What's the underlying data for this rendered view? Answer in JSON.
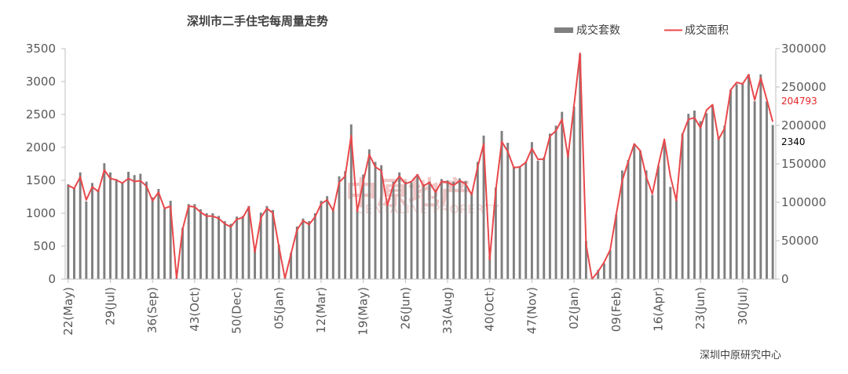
{
  "chart_data": {
    "type": "bar",
    "title": "深圳市二手住宅每周量走势",
    "source": "深圳中原研究中心",
    "legend_position": "top-right",
    "grid": false,
    "watermark": {
      "text_cn": "中原地产",
      "text_en": "CENTALINE PROPERTY"
    },
    "colors": {
      "bars": "#7f7f7f",
      "line": "#e8484b",
      "axis": "#bfbfbf",
      "text": "#595959"
    },
    "x_tick_labels": [
      "22(May)",
      "29(Jul)",
      "36(Sep)",
      "43(Oct)",
      "50(Dec)",
      "05(Jan)",
      "12(Mar)",
      "19(May)",
      "26(Jun)",
      "33(Aug)",
      "40(Oct)",
      "47(Nov)",
      "02(Jan)",
      "09(Feb)",
      "16(Apr)",
      "23(Jun)",
      "30(Jul)"
    ],
    "left_axis": {
      "min": 0,
      "max": 3500,
      "ticks": [
        0,
        500,
        1000,
        1500,
        2000,
        2500,
        3000,
        3500
      ]
    },
    "right_axis": {
      "min": 0,
      "max": 300000,
      "ticks": [
        0,
        50000,
        100000,
        150000,
        200000,
        250000,
        300000
      ]
    },
    "series": [
      {
        "name": "成交套数",
        "type": "bar",
        "axis": "left",
        "values": [
          1440,
          1380,
          1620,
          1180,
          1460,
          1360,
          1760,
          1620,
          1520,
          1460,
          1630,
          1580,
          1600,
          1480,
          1240,
          1370,
          1070,
          1190,
          20,
          780,
          1140,
          1140,
          1060,
          1000,
          1000,
          960,
          880,
          840,
          950,
          960,
          1110,
          480,
          1010,
          1110,
          1050,
          520,
          20,
          400,
          800,
          920,
          880,
          1000,
          1190,
          1260,
          1060,
          1560,
          1640,
          2350,
          1070,
          1590,
          1970,
          1780,
          1730,
          1150,
          1480,
          1620,
          1480,
          1470,
          1590,
          1440,
          1480,
          1360,
          1520,
          1500,
          1480,
          1530,
          1490,
          1320,
          1780,
          2180,
          350,
          1390,
          2250,
          2070,
          1710,
          1710,
          1780,
          2080,
          1800,
          1850,
          2210,
          2330,
          2540,
          1940,
          2620,
          3420,
          580,
          10,
          140,
          240,
          440,
          980,
          1650,
          1810,
          2050,
          1950,
          1650,
          1280,
          1720,
          2100,
          1400,
          1200,
          2210,
          2510,
          2560,
          2400,
          2520,
          2640,
          2150,
          2330,
          2870,
          2960,
          2980,
          3110,
          2700,
          3110,
          2700,
          2340
        ]
      },
      {
        "name": "成交面积",
        "type": "line",
        "axis": "right",
        "values": [
          122000,
          118000,
          133000,
          103000,
          120000,
          114000,
          142000,
          131000,
          129000,
          125000,
          131000,
          127000,
          128000,
          121000,
          102000,
          113000,
          92000,
          95000,
          1000,
          65000,
          95000,
          94000,
          87000,
          82000,
          82000,
          79000,
          72000,
          68000,
          78000,
          80000,
          94000,
          35000,
          80000,
          92000,
          86000,
          42000,
          1000,
          33000,
          64000,
          76000,
          71000,
          81000,
          98000,
          103000,
          89000,
          126000,
          134000,
          187000,
          88000,
          127000,
          162000,
          146000,
          141000,
          96000,
          123000,
          134000,
          124000,
          127000,
          136000,
          121000,
          126000,
          113000,
          127000,
          126000,
          122000,
          128000,
          124000,
          110000,
          146000,
          176000,
          25000,
          115000,
          179000,
          166000,
          145000,
          146000,
          152000,
          170000,
          156000,
          156000,
          186000,
          193000,
          208000,
          159000,
          226000,
          294000,
          45000,
          0,
          10000,
          22000,
          38000,
          84000,
          128000,
          153000,
          176000,
          167000,
          133000,
          111000,
          148000,
          182000,
          134000,
          102000,
          188000,
          208000,
          210000,
          197000,
          220000,
          227000,
          182000,
          196000,
          246000,
          256000,
          254000,
          266000,
          233000,
          262000,
          234000,
          204793
        ]
      }
    ],
    "last_labels": {
      "area": "204793",
      "units": "2340"
    }
  }
}
